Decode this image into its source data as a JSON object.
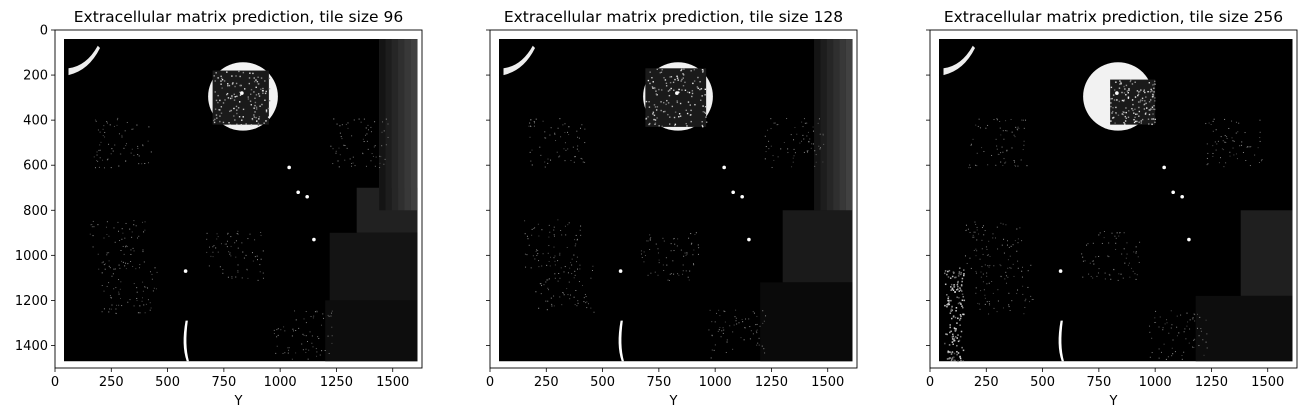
{
  "chart_data": [
    {
      "type": "heatmap",
      "title": "Extracellular matrix prediction, tile size 96",
      "xlabel": "Y",
      "ylabel": "",
      "xlim": [
        0,
        1630
      ],
      "ylim": [
        1500,
        0
      ],
      "xticks": [
        0,
        250,
        500,
        750,
        1000,
        1250,
        1500
      ],
      "yticks": [
        0,
        200,
        400,
        600,
        800,
        1000,
        1200,
        1400
      ],
      "xtick_labels": [
        "0",
        "250",
        "500",
        "750",
        "1000",
        "1250",
        "1500"
      ],
      "ytick_labels": [
        "0",
        "200",
        "400",
        "600",
        "800",
        "1000",
        "1200",
        "1400"
      ],
      "colormap": "gray",
      "image_extent": {
        "x": [
          40,
          1610
        ],
        "y": [
          40,
          1470
        ]
      },
      "features": {
        "ring": {
          "cx": 835,
          "cy": 295,
          "r": 155,
          "inner_tile_extent": [
            700,
            950,
            180,
            420
          ]
        },
        "tile_blocks": [
          {
            "x0": 1440,
            "y0": 40,
            "x1": 1610,
            "y1": 800,
            "level": 0.2
          },
          {
            "x0": 1340,
            "y0": 700,
            "x1": 1610,
            "y1": 900,
            "level": 0.13
          },
          {
            "x0": 1220,
            "y0": 900,
            "x1": 1610,
            "y1": 1200,
            "level": 0.08
          },
          {
            "x0": 1200,
            "y0": 1200,
            "x1": 1610,
            "y1": 1470,
            "level": 0.05
          }
        ]
      }
    },
    {
      "type": "heatmap",
      "title": "Extracellular matrix prediction, tile size 128",
      "xlabel": "Y",
      "ylabel": "",
      "xlim": [
        0,
        1630
      ],
      "ylim": [
        1500,
        0
      ],
      "xticks": [
        0,
        250,
        500,
        750,
        1000,
        1250,
        1500
      ],
      "yticks": [
        0,
        200,
        400,
        600,
        800,
        1000,
        1200,
        1400
      ],
      "xtick_labels": [
        "0",
        "250",
        "500",
        "750",
        "1000",
        "1250",
        "1500"
      ],
      "ytick_labels": [
        "",
        "",
        "",
        "",
        "",
        "",
        "",
        ""
      ],
      "colormap": "gray",
      "image_extent": {
        "x": [
          40,
          1610
        ],
        "y": [
          40,
          1470
        ]
      },
      "features": {
        "ring": {
          "cx": 835,
          "cy": 295,
          "r": 155,
          "inner_tile_extent": [
            690,
            960,
            170,
            430
          ]
        },
        "tile_blocks": [
          {
            "x0": 1440,
            "y0": 40,
            "x1": 1610,
            "y1": 800,
            "level": 0.12
          },
          {
            "x0": 1300,
            "y0": 800,
            "x1": 1610,
            "y1": 1120,
            "level": 0.1
          },
          {
            "x0": 1200,
            "y0": 1120,
            "x1": 1610,
            "y1": 1470,
            "level": 0.04
          }
        ]
      }
    },
    {
      "type": "heatmap",
      "title": "Extracellular matrix prediction, tile size 256",
      "xlabel": "Y",
      "ylabel": "",
      "xlim": [
        0,
        1630
      ],
      "ylim": [
        1500,
        0
      ],
      "xticks": [
        0,
        250,
        500,
        750,
        1000,
        1250,
        1500
      ],
      "yticks": [
        0,
        200,
        400,
        600,
        800,
        1000,
        1200,
        1400
      ],
      "xtick_labels": [
        "0",
        "250",
        "500",
        "750",
        "1000",
        "1250",
        "1500"
      ],
      "ytick_labels": [
        "",
        "",
        "",
        "",
        "",
        "",
        "",
        ""
      ],
      "colormap": "gray",
      "image_extent": {
        "x": [
          40,
          1610
        ],
        "y": [
          40,
          1470
        ]
      },
      "features": {
        "ring": {
          "cx": 835,
          "cy": 295,
          "r": 155,
          "inner_tile_extent": [
            800,
            1000,
            220,
            420
          ]
        },
        "tile_blocks": [
          {
            "x0": 1380,
            "y0": 800,
            "x1": 1610,
            "y1": 1180,
            "level": 0.12
          },
          {
            "x0": 1180,
            "y0": 1180,
            "x1": 1610,
            "y1": 1470,
            "level": 0.05
          }
        ]
      }
    }
  ]
}
